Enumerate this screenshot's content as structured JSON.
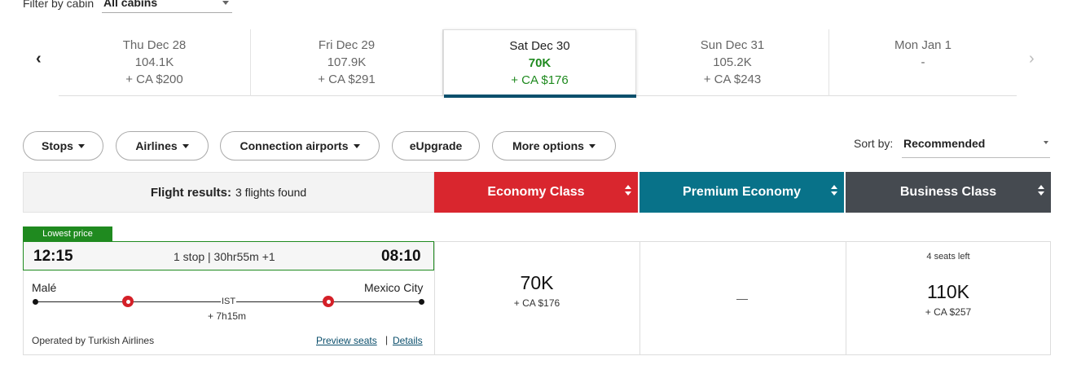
{
  "cabin_filter": {
    "label": "Filter by cabin",
    "value": "All cabins"
  },
  "date_nav": {
    "prev": "‹",
    "next": "›",
    "dates": [
      {
        "date": "Thu Dec 28",
        "points": "104.1K",
        "cash": "+ CA $200"
      },
      {
        "date": "Fri Dec 29",
        "points": "107.9K",
        "cash": "+ CA $291"
      },
      {
        "date": "Sat Dec 30",
        "points": "70K",
        "cash": "+ CA $176",
        "selected": true
      },
      {
        "date": "Sun Dec 31",
        "points": "105.2K",
        "cash": "+ CA $243"
      },
      {
        "date": "Mon Jan 1",
        "points": "-",
        "cash": ""
      }
    ]
  },
  "filters": {
    "stops": "Stops",
    "airlines": "Airlines",
    "connection": "Connection airports",
    "eupgrade": "eUpgrade",
    "more": "More options"
  },
  "sort": {
    "label": "Sort by:",
    "value": "Recommended"
  },
  "results_header": {
    "title": "Flight results:",
    "count": "3 flights found"
  },
  "cabins": {
    "economy": {
      "label": "Economy Class",
      "color": "#d9262e"
    },
    "premium": {
      "label": "Premium Economy",
      "color": "#087289"
    },
    "business": {
      "label": "Business Class",
      "color": "#454a50"
    }
  },
  "flight": {
    "badge": "Lowest price",
    "departure_time": "12:15",
    "arrival_time": "08:10",
    "stops_info": "1 stop | 30hr55m +1",
    "origin": "Malé",
    "destination": "Mexico City",
    "connection_airport": "IST",
    "layover": "+ 7h15m",
    "operated_by": "Operated by Turkish Airlines",
    "preview_seats": "Preview seats",
    "separator": "|",
    "details": "Details",
    "economy_points": "70K",
    "economy_cash": "+ CA $176",
    "premium_unavailable": "—",
    "business_seats_left": "4 seats left",
    "business_points": "110K",
    "business_cash": "+ CA $257"
  }
}
